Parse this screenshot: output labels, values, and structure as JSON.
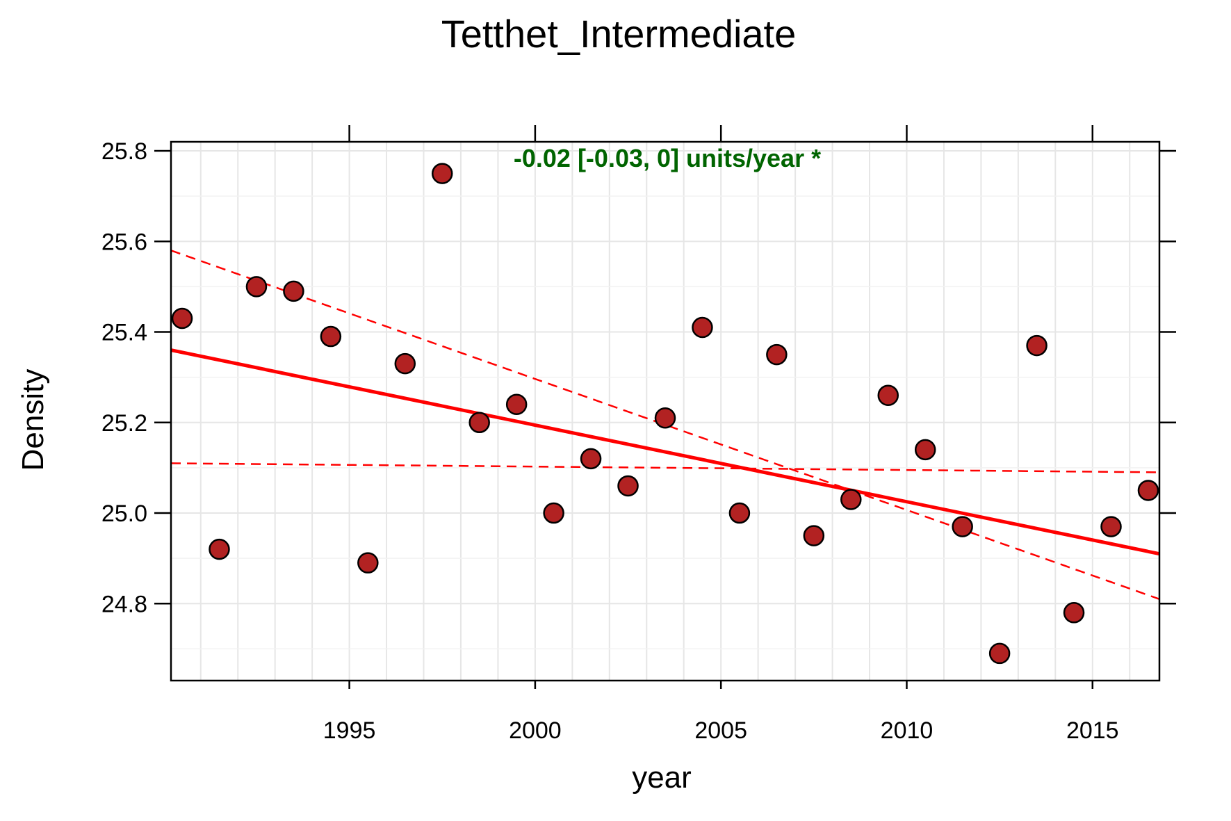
{
  "chart_data": {
    "type": "scatter",
    "title": "Tetthet_Intermediate",
    "xlabel": "year",
    "ylabel": "Density",
    "xlim": [
      1990.2,
      2016.8
    ],
    "ylim": [
      24.63,
      25.82
    ],
    "xticks": [
      1995,
      2000,
      2005,
      2010,
      2015
    ],
    "xtick_labels": [
      "1995",
      "2000",
      "2005",
      "2010",
      "2015"
    ],
    "yticks": [
      24.8,
      25.0,
      25.2,
      25.4,
      25.6,
      25.8
    ],
    "ytick_labels": [
      "24.8",
      "25.0",
      "25.2",
      "25.4",
      "25.6",
      "25.8"
    ],
    "grid": true,
    "annotation": "-0.02 [-0.03, 0] units/year *",
    "colors": {
      "point_fill": "#b22222",
      "point_stroke": "#000000",
      "trend": "#ff0000",
      "annotation": "#006400",
      "grid": "#e6e6e6"
    },
    "points": [
      {
        "x": 1990.5,
        "y": 25.43
      },
      {
        "x": 1991.5,
        "y": 24.92
      },
      {
        "x": 1992.5,
        "y": 25.5
      },
      {
        "x": 1993.5,
        "y": 25.49
      },
      {
        "x": 1994.5,
        "y": 25.39
      },
      {
        "x": 1995.5,
        "y": 24.89
      },
      {
        "x": 1996.5,
        "y": 25.33
      },
      {
        "x": 1997.5,
        "y": 25.75
      },
      {
        "x": 1998.5,
        "y": 25.2
      },
      {
        "x": 1999.5,
        "y": 25.24
      },
      {
        "x": 2000.5,
        "y": 25.0
      },
      {
        "x": 2001.5,
        "y": 25.12
      },
      {
        "x": 2002.5,
        "y": 25.06
      },
      {
        "x": 2003.5,
        "y": 25.21
      },
      {
        "x": 2004.5,
        "y": 25.41
      },
      {
        "x": 2005.5,
        "y": 25.0
      },
      {
        "x": 2006.5,
        "y": 25.35
      },
      {
        "x": 2007.5,
        "y": 24.95
      },
      {
        "x": 2008.5,
        "y": 25.03
      },
      {
        "x": 2009.5,
        "y": 25.26
      },
      {
        "x": 2010.5,
        "y": 25.14
      },
      {
        "x": 2011.5,
        "y": 24.97
      },
      {
        "x": 2012.5,
        "y": 24.69
      },
      {
        "x": 2013.5,
        "y": 25.37
      },
      {
        "x": 2014.5,
        "y": 24.78
      },
      {
        "x": 2015.5,
        "y": 24.97
      },
      {
        "x": 2016.5,
        "y": 25.05
      }
    ],
    "trend_lines": [
      {
        "style": "solid",
        "x": [
          1990.2,
          2016.8
        ],
        "y": [
          25.36,
          24.91
        ]
      },
      {
        "style": "dashed",
        "x": [
          1990.2,
          2016.8
        ],
        "y": [
          25.58,
          24.81
        ]
      },
      {
        "style": "dashed",
        "x": [
          1990.2,
          2016.8
        ],
        "y": [
          25.11,
          25.09
        ]
      }
    ]
  }
}
